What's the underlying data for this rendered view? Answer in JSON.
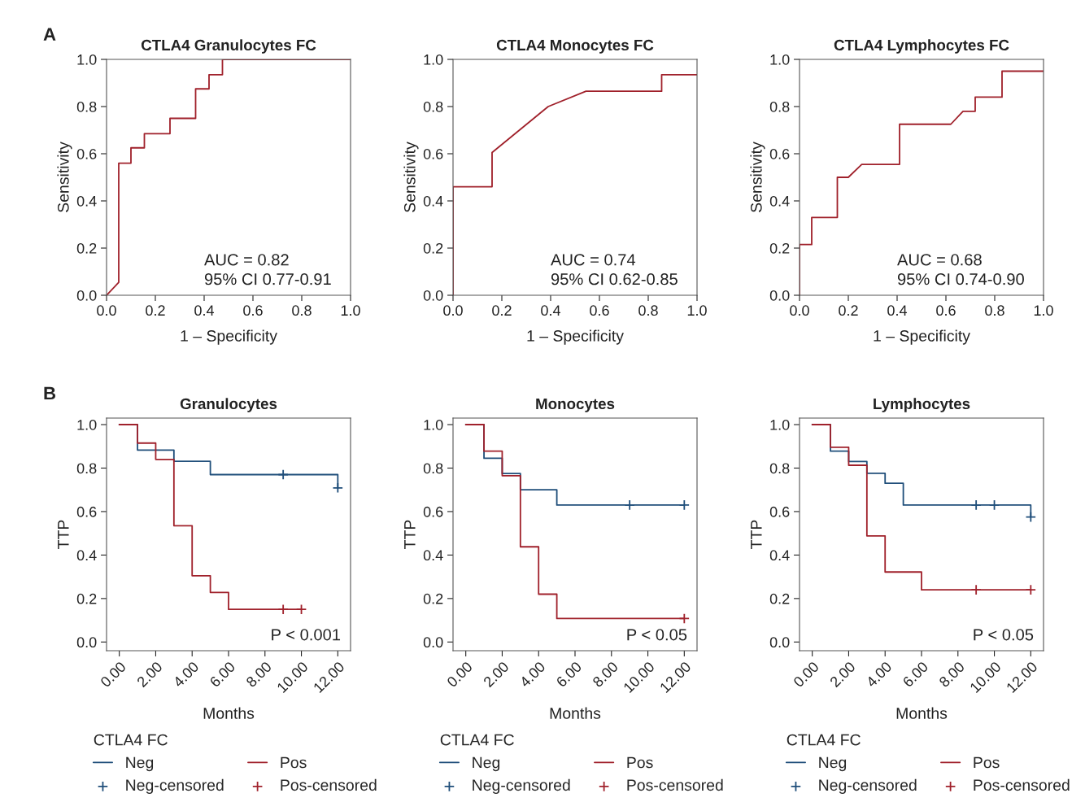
{
  "chart_data": [
    {
      "type": "line",
      "title": "CTLA4 Granulocytes FC",
      "xlabel": "1 – Specificity",
      "ylabel": "Sensitivity",
      "xlim": [
        0,
        1
      ],
      "ylim": [
        0,
        1
      ],
      "xticks": [
        {
          "value": 0,
          "label": "0.0"
        },
        {
          "value": 0.2,
          "label": "0.2"
        },
        {
          "value": 0.4,
          "label": "0.4"
        },
        {
          "value": 0.6,
          "label": "0.6"
        },
        {
          "value": 0.8,
          "label": "0.8"
        },
        {
          "value": 1,
          "label": "1.0"
        }
      ],
      "yticks": [
        {
          "value": 0,
          "label": "0.0"
        },
        {
          "value": 0.2,
          "label": "0.2"
        },
        {
          "value": 0.4,
          "label": "0.4"
        },
        {
          "value": 0.6,
          "label": "0.6"
        },
        {
          "value": 0.8,
          "label": "0.8"
        },
        {
          "value": 1,
          "label": "1.0"
        }
      ],
      "annotations": [
        "A",
        "AUC = 0.82",
        "95% CI 0.77-0.91"
      ],
      "series": [
        {
          "color": "#a0212b",
          "x": [
            0,
            0.05,
            0.05,
            0.1,
            0.1,
            0.155,
            0.155,
            0.26,
            0.26,
            0.365,
            0.365,
            0.42,
            0.42,
            0.475,
            0.475,
            1.0
          ],
          "values": [
            0,
            0.055,
            0.56,
            0.56,
            0.625,
            0.625,
            0.685,
            0.685,
            0.75,
            0.75,
            0.875,
            0.875,
            0.935,
            0.935,
            1.0,
            1.0
          ]
        }
      ]
    },
    {
      "type": "line",
      "title": "CTLA4 Monocytes FC",
      "xlabel": "1 – Specificity",
      "ylabel": "Sensitivity",
      "xlim": [
        0,
        1
      ],
      "ylim": [
        0,
        1
      ],
      "xticks": [
        {
          "value": 0,
          "label": "0.0"
        },
        {
          "value": 0.2,
          "label": "0.2"
        },
        {
          "value": 0.4,
          "label": "0.4"
        },
        {
          "value": 0.6,
          "label": "0.6"
        },
        {
          "value": 0.8,
          "label": "0.8"
        },
        {
          "value": 1,
          "label": "1.0"
        }
      ],
      "yticks": [
        {
          "value": 0,
          "label": "0.0"
        },
        {
          "value": 0.2,
          "label": "0.2"
        },
        {
          "value": 0.4,
          "label": "0.4"
        },
        {
          "value": 0.6,
          "label": "0.6"
        },
        {
          "value": 0.8,
          "label": "0.8"
        },
        {
          "value": 1,
          "label": "1.0"
        }
      ],
      "annotations": [
        "AUC = 0.74",
        "95% CI 0.62-0.85"
      ],
      "series": [
        {
          "color": "#a0212b",
          "x": [
            0,
            0,
            0.16,
            0.16,
            0.39,
            0.545,
            0.855,
            0.855,
            1.0
          ],
          "values": [
            0,
            0.46,
            0.46,
            0.605,
            0.8,
            0.865,
            0.865,
            0.935,
            0.935
          ]
        }
      ]
    },
    {
      "type": "line",
      "title": "CTLA4 Lymphocytes FC",
      "xlabel": "1 – Specificity",
      "ylabel": "Sensitivity",
      "xlim": [
        0,
        1
      ],
      "ylim": [
        0,
        1
      ],
      "xticks": [
        {
          "value": 0,
          "label": "0.0"
        },
        {
          "value": 0.2,
          "label": "0.2"
        },
        {
          "value": 0.4,
          "label": "0.4"
        },
        {
          "value": 0.6,
          "label": "0.6"
        },
        {
          "value": 0.8,
          "label": "0.8"
        },
        {
          "value": 1,
          "label": "1.0"
        }
      ],
      "yticks": [
        {
          "value": 0,
          "label": "0.0"
        },
        {
          "value": 0.2,
          "label": "0.2"
        },
        {
          "value": 0.4,
          "label": "0.4"
        },
        {
          "value": 0.6,
          "label": "0.6"
        },
        {
          "value": 0.8,
          "label": "0.8"
        },
        {
          "value": 1,
          "label": "1.0"
        }
      ],
      "annotations": [
        "AUC = 0.68",
        "95% CI 0.74-0.90"
      ],
      "series": [
        {
          "color": "#a0212b",
          "x": [
            0,
            0,
            0.05,
            0.05,
            0.155,
            0.155,
            0.2,
            0.255,
            0.41,
            0.41,
            0.62,
            0.67,
            0.72,
            0.72,
            0.83,
            0.83,
            1.0
          ],
          "values": [
            0,
            0.215,
            0.215,
            0.33,
            0.33,
            0.5,
            0.5,
            0.555,
            0.555,
            0.725,
            0.725,
            0.78,
            0.78,
            0.84,
            0.84,
            0.95,
            0.95
          ]
        }
      ]
    },
    {
      "type": "step",
      "title": "Granulocytes",
      "xlabel": "Months",
      "ylabel": "TTP",
      "xlim": [
        -0.7,
        12.7
      ],
      "ylim": [
        -0.04,
        1.03
      ],
      "xticks": [
        {
          "value": 0,
          "label": "0.00"
        },
        {
          "value": 2,
          "label": "2.00"
        },
        {
          "value": 4,
          "label": "4.00"
        },
        {
          "value": 6,
          "label": "6.00"
        },
        {
          "value": 8,
          "label": "8.00"
        },
        {
          "value": 10,
          "label": "10.00"
        },
        {
          "value": 12,
          "label": "12.00"
        }
      ],
      "yticks": [
        {
          "value": 0,
          "label": "0.0"
        },
        {
          "value": 0.2,
          "label": "0.2"
        },
        {
          "value": 0.4,
          "label": "0.4"
        },
        {
          "value": 0.6,
          "label": "0.6"
        },
        {
          "value": 0.8,
          "label": "0.8"
        },
        {
          "value": 1,
          "label": "1.0"
        }
      ],
      "annotations": [
        "B",
        "P < 0.001"
      ],
      "legend": "bottom",
      "legend_title": "CTLA4 FC",
      "series": [
        {
          "name": "Neg",
          "color": "#1f4e7a",
          "x": [
            0,
            1,
            3,
            5,
            12
          ],
          "values": [
            1.0,
            0.883,
            0.831,
            0.77,
            0.709
          ]
        },
        {
          "name": "Neg-censored",
          "type": "scatter",
          "marker": "cross",
          "color": "#1f4e7a",
          "x": [
            9,
            12
          ],
          "values": [
            0.77,
            0.709
          ]
        },
        {
          "name": "Pos",
          "color": "#a0212b",
          "x": [
            0,
            1,
            2,
            3,
            4,
            5,
            6,
            10
          ],
          "values": [
            1.0,
            0.915,
            0.84,
            0.535,
            0.305,
            0.228,
            0.15,
            0.15
          ]
        },
        {
          "name": "Pos-censored",
          "type": "scatter",
          "marker": "cross",
          "color": "#a0212b",
          "x": [
            9,
            10
          ],
          "values": [
            0.15,
            0.15
          ]
        }
      ]
    },
    {
      "type": "step",
      "title": "Monocytes",
      "xlabel": "Months",
      "ylabel": "TTP",
      "xlim": [
        -0.7,
        12.7
      ],
      "ylim": [
        -0.04,
        1.03
      ],
      "xticks": [
        {
          "value": 0,
          "label": "0.00"
        },
        {
          "value": 2,
          "label": "2.00"
        },
        {
          "value": 4,
          "label": "4.00"
        },
        {
          "value": 6,
          "label": "6.00"
        },
        {
          "value": 8,
          "label": "8.00"
        },
        {
          "value": 10,
          "label": "10.00"
        },
        {
          "value": 12,
          "label": "12.00"
        }
      ],
      "yticks": [
        {
          "value": 0,
          "label": "0.0"
        },
        {
          "value": 0.2,
          "label": "0.2"
        },
        {
          "value": 0.4,
          "label": "0.4"
        },
        {
          "value": 0.6,
          "label": "0.6"
        },
        {
          "value": 0.8,
          "label": "0.8"
        },
        {
          "value": 1,
          "label": "1.0"
        }
      ],
      "annotations": [
        "P < 0.05"
      ],
      "legend": "bottom",
      "legend_title": "CTLA4 FC",
      "series": [
        {
          "name": "Neg",
          "color": "#1f4e7a",
          "x": [
            0,
            1,
            2,
            3,
            5,
            12
          ],
          "values": [
            1.0,
            0.845,
            0.775,
            0.7,
            0.63,
            0.63
          ]
        },
        {
          "name": "Neg-censored",
          "type": "scatter",
          "marker": "cross",
          "color": "#1f4e7a",
          "x": [
            9,
            12
          ],
          "values": [
            0.63,
            0.63
          ]
        },
        {
          "name": "Pos",
          "color": "#a0212b",
          "x": [
            0,
            1,
            2,
            3,
            4,
            5,
            12
          ],
          "values": [
            1.0,
            0.878,
            0.765,
            0.438,
            0.22,
            0.108,
            0.108
          ]
        },
        {
          "name": "Pos-censored",
          "type": "scatter",
          "marker": "cross",
          "color": "#a0212b",
          "x": [
            12
          ],
          "values": [
            0.108
          ]
        }
      ]
    },
    {
      "type": "step",
      "title": "Lymphocytes",
      "xlabel": "Months",
      "ylabel": "TTP",
      "xlim": [
        -0.7,
        12.7
      ],
      "ylim": [
        -0.04,
        1.03
      ],
      "xticks": [
        {
          "value": 0,
          "label": "0.00"
        },
        {
          "value": 2,
          "label": "2.00"
        },
        {
          "value": 4,
          "label": "4.00"
        },
        {
          "value": 6,
          "label": "6.00"
        },
        {
          "value": 8,
          "label": "8.00"
        },
        {
          "value": 10,
          "label": "10.00"
        },
        {
          "value": 12,
          "label": "12.00"
        }
      ],
      "yticks": [
        {
          "value": 0,
          "label": "0.0"
        },
        {
          "value": 0.2,
          "label": "0.2"
        },
        {
          "value": 0.4,
          "label": "0.4"
        },
        {
          "value": 0.6,
          "label": "0.6"
        },
        {
          "value": 0.8,
          "label": "0.8"
        },
        {
          "value": 1,
          "label": "1.0"
        }
      ],
      "annotations": [
        "P < 0.05"
      ],
      "legend": "bottom",
      "legend_title": "CTLA4 FC",
      "series": [
        {
          "name": "Neg",
          "color": "#1f4e7a",
          "x": [
            0,
            1,
            2,
            3,
            4,
            5,
            12
          ],
          "values": [
            1.0,
            0.878,
            0.83,
            0.776,
            0.73,
            0.63,
            0.575
          ]
        },
        {
          "name": "Neg-censored",
          "type": "scatter",
          "marker": "cross",
          "color": "#1f4e7a",
          "x": [
            9,
            10,
            12
          ],
          "values": [
            0.63,
            0.63,
            0.575
          ]
        },
        {
          "name": "Pos",
          "color": "#a0212b",
          "x": [
            0,
            1,
            2,
            3,
            4,
            6,
            12
          ],
          "values": [
            1.0,
            0.896,
            0.813,
            0.488,
            0.322,
            0.24,
            0.24
          ]
        },
        {
          "name": "Pos-censored",
          "type": "scatter",
          "marker": "cross",
          "color": "#a0212b",
          "x": [
            9,
            12
          ],
          "values": [
            0.24,
            0.24
          ]
        }
      ]
    }
  ]
}
